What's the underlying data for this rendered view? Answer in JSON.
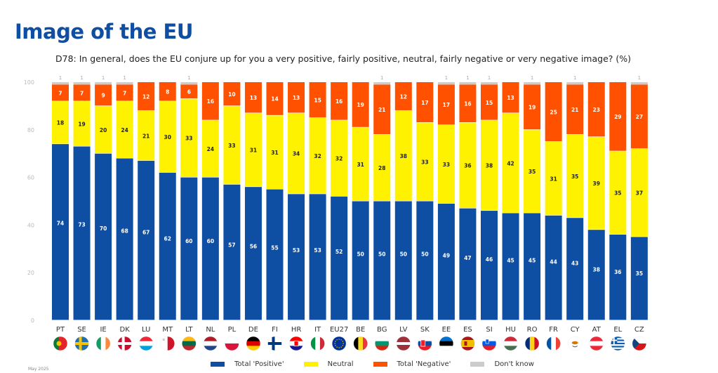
{
  "page": {
    "title": "Image of the EU",
    "footnote": "May 2025"
  },
  "chart_data": {
    "type": "bar",
    "stacked": true,
    "orientation": "vertical",
    "title": "D78: In general, does the EU conjure up for you a very positive, fairly positive, neutral, fairly negative or very negative image? (%)",
    "xlabel": "",
    "ylabel": "",
    "ylim": [
      0,
      100
    ],
    "yticks": [
      0,
      20,
      40,
      60,
      80,
      100
    ],
    "grid": false,
    "legend_position": "bottom",
    "categories": [
      "PT",
      "SE",
      "IE",
      "DK",
      "LU",
      "MT",
      "LT",
      "NL",
      "PL",
      "DE",
      "FI",
      "HR",
      "IT",
      "EU27",
      "BE",
      "BG",
      "LV",
      "SK",
      "EE",
      "ES",
      "SI",
      "HU",
      "RO",
      "FR",
      "CY",
      "AT",
      "EL",
      "CZ"
    ],
    "series": [
      {
        "name": "Total 'Positive'",
        "color": "#0e4ea3",
        "label_color": "#ffffff",
        "values": [
          74,
          73,
          70,
          68,
          67,
          62,
          60,
          60,
          57,
          56,
          55,
          53,
          53,
          52,
          50,
          50,
          50,
          50,
          49,
          47,
          46,
          45,
          45,
          44,
          43,
          38,
          36,
          35
        ]
      },
      {
        "name": "Neutral",
        "color": "#fff200",
        "label_color": "#222222",
        "values": [
          18,
          19,
          20,
          24,
          21,
          30,
          33,
          24,
          33,
          31,
          31,
          34,
          32,
          32,
          31,
          28,
          38,
          33,
          33,
          36,
          38,
          42,
          35,
          31,
          35,
          39,
          35,
          37
        ]
      },
      {
        "name": "Total 'Negative'",
        "color": "#ff5100",
        "label_color": "#ffffff",
        "values": [
          7,
          7,
          9,
          7,
          12,
          8,
          6,
          16,
          10,
          13,
          14,
          13,
          15,
          16,
          19,
          21,
          12,
          17,
          17,
          16,
          15,
          13,
          19,
          25,
          21,
          23,
          29,
          27
        ]
      },
      {
        "name": "Don't know",
        "color": "#cccccc",
        "label_color": "#aaaaaa",
        "values": [
          1,
          1,
          1,
          1,
          0,
          0,
          1,
          0,
          0,
          0,
          0,
          0,
          0,
          0,
          0,
          1,
          0,
          0,
          1,
          1,
          1,
          0,
          1,
          0,
          1,
          0,
          0,
          1
        ]
      }
    ],
    "flags": [
      "flag-portugal",
      "flag-sweden",
      "flag-ireland",
      "flag-denmark",
      "flag-luxembourg",
      "flag-malta",
      "flag-lithuania",
      "flag-netherlands",
      "flag-poland",
      "flag-germany",
      "flag-finland",
      "flag-croatia",
      "flag-italy",
      "flag-eu",
      "flag-belgium",
      "flag-bulgaria",
      "flag-latvia",
      "flag-slovakia",
      "flag-estonia",
      "flag-spain",
      "flag-slovenia",
      "flag-hungary",
      "flag-romania",
      "flag-france",
      "flag-cyprus",
      "flag-austria",
      "flag-greece",
      "flag-czechia"
    ]
  }
}
